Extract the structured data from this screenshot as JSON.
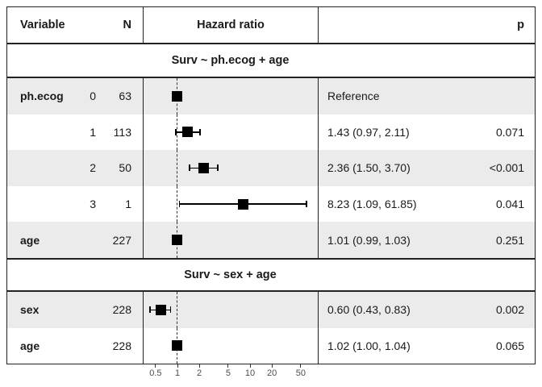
{
  "header": {
    "variable": "Variable",
    "n": "N",
    "hazard_ratio": "Hazard ratio",
    "p": "p"
  },
  "sections": [
    {
      "title": "Surv ~ ph.ecog + age"
    },
    {
      "title": "Surv ~ sex + age"
    }
  ],
  "rows": [
    {
      "variable": "ph.ecog",
      "level": "0",
      "n": "63",
      "estimate": "Reference",
      "p": ""
    },
    {
      "variable": "",
      "level": "1",
      "n": "113",
      "estimate": "1.43 (0.97, 2.11)",
      "p": "0.071"
    },
    {
      "variable": "",
      "level": "2",
      "n": "50",
      "estimate": "2.36 (1.50, 3.70)",
      "p": "<0.001"
    },
    {
      "variable": "",
      "level": "3",
      "n": "1",
      "estimate": "8.23 (1.09, 61.85)",
      "p": "0.041"
    },
    {
      "variable": "age",
      "level": "",
      "n": "227",
      "estimate": "1.01 (0.99, 1.03)",
      "p": "0.251"
    },
    {
      "variable": "sex",
      "level": "",
      "n": "228",
      "estimate": "0.60 (0.43, 0.83)",
      "p": "0.002"
    },
    {
      "variable": "age",
      "level": "",
      "n": "228",
      "estimate": "1.02 (1.00, 1.04)",
      "p": "0.065"
    }
  ],
  "chart_data": {
    "type": "scatter",
    "subtype": "forest-plot",
    "title": "",
    "xlabel": "Hazard ratio",
    "x_scale": "log",
    "x_ticks": [
      0.5,
      1,
      2,
      5,
      10,
      20,
      50
    ],
    "x_range": [
      0.4,
      75
    ],
    "ref_line": 1,
    "grid": false,
    "points": [
      {
        "group": "Surv ~ ph.ecog + age",
        "label": "ph.ecog 0",
        "n": 63,
        "hr": 1.0,
        "lo": null,
        "hi": null,
        "reference": true,
        "p": null
      },
      {
        "group": "Surv ~ ph.ecog + age",
        "label": "ph.ecog 1",
        "n": 113,
        "hr": 1.43,
        "lo": 0.97,
        "hi": 2.11,
        "reference": false,
        "p": "0.071"
      },
      {
        "group": "Surv ~ ph.ecog + age",
        "label": "ph.ecog 2",
        "n": 50,
        "hr": 2.36,
        "lo": 1.5,
        "hi": 3.7,
        "reference": false,
        "p": "<0.001"
      },
      {
        "group": "Surv ~ ph.ecog + age",
        "label": "ph.ecog 3",
        "n": 1,
        "hr": 8.23,
        "lo": 1.09,
        "hi": 61.85,
        "reference": false,
        "p": "0.041"
      },
      {
        "group": "Surv ~ ph.ecog + age",
        "label": "age",
        "n": 227,
        "hr": 1.01,
        "lo": 0.99,
        "hi": 1.03,
        "reference": false,
        "p": "0.251"
      },
      {
        "group": "Surv ~ sex + age",
        "label": "sex",
        "n": 228,
        "hr": 0.6,
        "lo": 0.43,
        "hi": 0.83,
        "reference": false,
        "p": "0.002"
      },
      {
        "group": "Surv ~ sex + age",
        "label": "age",
        "n": 228,
        "hr": 1.02,
        "lo": 1.0,
        "hi": 1.04,
        "reference": false,
        "p": "0.065"
      }
    ]
  },
  "colors": {
    "row_shade": "#ebebeb",
    "marker": "#000000",
    "border": "#222222",
    "ref_line": "#333333",
    "axis_text": "#4d4d4d"
  }
}
